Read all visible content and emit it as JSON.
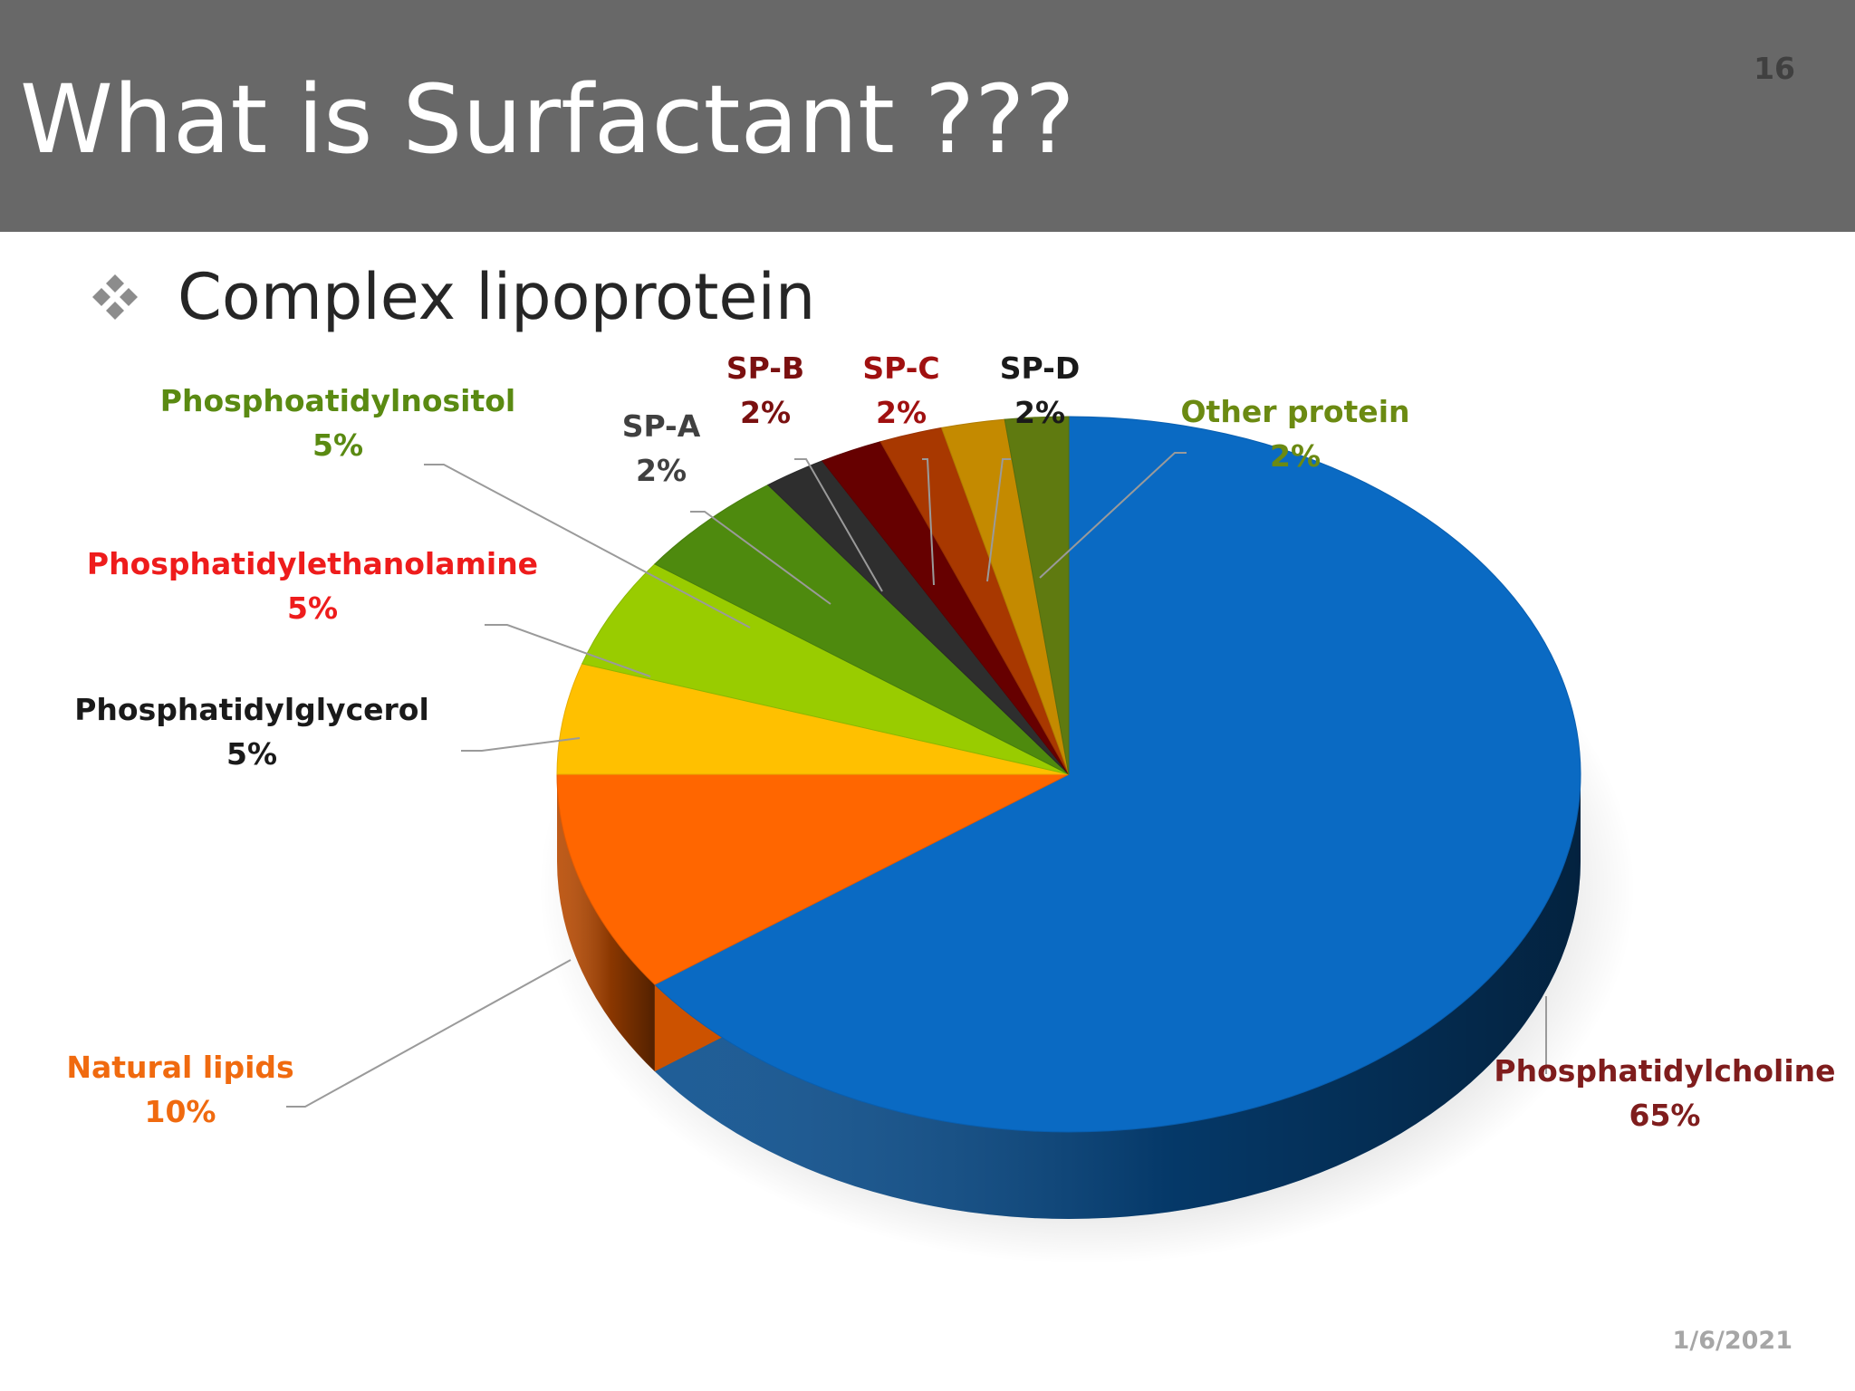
{
  "slide": {
    "title": "What is Surfactant ???",
    "number": "16",
    "bullet": "Complex lipoprotein",
    "bullet_icon": "diamond-bullet-icon",
    "date": "1/6/2021"
  },
  "colors": {
    "header_bg": "#686868",
    "title": "#ffffff"
  },
  "chart_data": {
    "type": "pie",
    "variant": "3d",
    "title": "",
    "start": "12 o'clock, clockwise",
    "slices": [
      {
        "label": "Phosphatidylcholine",
        "value": 65,
        "value_text": "65%",
        "color": "#0a6ac3",
        "label_color": "#7f1d1d"
      },
      {
        "label": "Natural lipids",
        "value": 10,
        "value_text": "10%",
        "color": "#ff6600",
        "label_color": "#f06a0f"
      },
      {
        "label": "Phosphatidylglycerol",
        "value": 5,
        "value_text": "5%",
        "color": "#ffc000",
        "label_color": "#1a1a1a"
      },
      {
        "label": "Phosphatidylethanolamine",
        "value": 5,
        "value_text": "5%",
        "color": "#99cc00",
        "label_color": "#ee1c1c"
      },
      {
        "label": "Phosphoatidylnositol",
        "value": 5,
        "value_text": "5%",
        "color": "#4e8a0e",
        "label_color": "#5a8a12"
      },
      {
        "label": "SP-A",
        "value": 2,
        "value_text": "2%",
        "color": "#2e2e2e",
        "label_color": "#404040"
      },
      {
        "label": "SP-B",
        "value": 2,
        "value_text": "2%",
        "color": "#660000",
        "label_color": "#7a1010"
      },
      {
        "label": "SP-C",
        "value": 2,
        "value_text": "2%",
        "color": "#a83800",
        "label_color": "#a01010"
      },
      {
        "label": "SP-D",
        "value": 2,
        "value_text": "2%",
        "color": "#c48a00",
        "label_color": "#1a1a1a"
      },
      {
        "label": "Other protein",
        "value": 2,
        "value_text": "2%",
        "color": "#5f7a10",
        "label_color": "#6b8a12"
      }
    ]
  }
}
